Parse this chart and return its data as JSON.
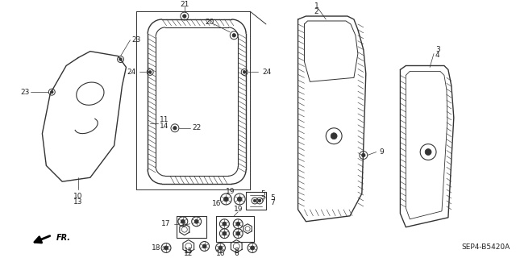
{
  "diagram_code": "SEP4-B5420A",
  "bg_color": "#ffffff",
  "line_color": "#333333",
  "text_color": "#222222"
}
